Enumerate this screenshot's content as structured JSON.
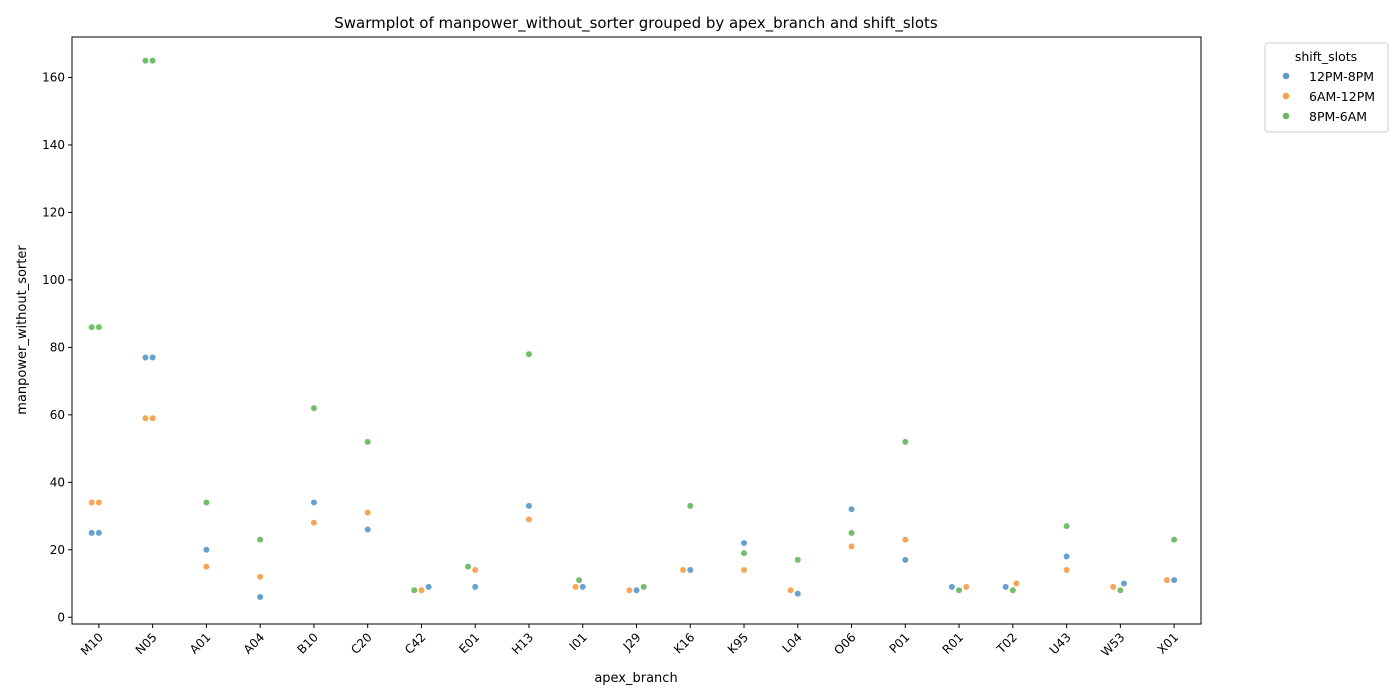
{
  "chart_data": {
    "type": "scatter",
    "subtype": "swarm",
    "title": "Swarmplot of manpower_without_sorter grouped by apex_branch and shift_slots",
    "xlabel": "apex_branch",
    "ylabel": "manpower_without_sorter",
    "ylim": [
      -2,
      172
    ],
    "yticks": [
      0,
      20,
      40,
      60,
      80,
      100,
      120,
      140,
      160
    ],
    "grid": false,
    "legend": {
      "title": "shift_slots",
      "placement": "outside-top-right"
    },
    "categories": [
      "M10",
      "N05",
      "A01",
      "A04",
      "B10",
      "C20",
      "C42",
      "E01",
      "H13",
      "I01",
      "J29",
      "K16",
      "K95",
      "L04",
      "O06",
      "P01",
      "R01",
      "T02",
      "U43",
      "W53",
      "X01"
    ],
    "series": [
      {
        "name": "12PM-8PM",
        "color": "#5f9ccb",
        "points": [
          {
            "x": "M10",
            "y": 25
          },
          {
            "x": "M10",
            "y": 25
          },
          {
            "x": "N05",
            "y": 77
          },
          {
            "x": "N05",
            "y": 77
          },
          {
            "x": "A01",
            "y": 20
          },
          {
            "x": "A04",
            "y": 6
          },
          {
            "x": "B10",
            "y": 34
          },
          {
            "x": "C20",
            "y": 26
          },
          {
            "x": "C42",
            "y": 9
          },
          {
            "x": "E01",
            "y": 9
          },
          {
            "x": "H13",
            "y": 33
          },
          {
            "x": "I01",
            "y": 9
          },
          {
            "x": "J29",
            "y": 8
          },
          {
            "x": "K16",
            "y": 14
          },
          {
            "x": "K95",
            "y": 22
          },
          {
            "x": "L04",
            "y": 7
          },
          {
            "x": "O06",
            "y": 32
          },
          {
            "x": "P01",
            "y": 17
          },
          {
            "x": "R01",
            "y": 9
          },
          {
            "x": "T02",
            "y": 9
          },
          {
            "x": "U43",
            "y": 18
          },
          {
            "x": "W53",
            "y": 10
          },
          {
            "x": "X01",
            "y": 11
          }
        ]
      },
      {
        "name": "6AM-12PM",
        "color": "#f7a14f",
        "points": [
          {
            "x": "M10",
            "y": 34
          },
          {
            "x": "M10",
            "y": 34
          },
          {
            "x": "N05",
            "y": 59
          },
          {
            "x": "N05",
            "y": 59
          },
          {
            "x": "A01",
            "y": 15
          },
          {
            "x": "A04",
            "y": 12
          },
          {
            "x": "B10",
            "y": 28
          },
          {
            "x": "C20",
            "y": 31
          },
          {
            "x": "C42",
            "y": 8
          },
          {
            "x": "E01",
            "y": 14
          },
          {
            "x": "H13",
            "y": 29
          },
          {
            "x": "I01",
            "y": 9
          },
          {
            "x": "J29",
            "y": 8
          },
          {
            "x": "K16",
            "y": 14
          },
          {
            "x": "K95",
            "y": 14
          },
          {
            "x": "L04",
            "y": 8
          },
          {
            "x": "O06",
            "y": 21
          },
          {
            "x": "P01",
            "y": 23
          },
          {
            "x": "R01",
            "y": 9
          },
          {
            "x": "T02",
            "y": 10
          },
          {
            "x": "U43",
            "y": 14
          },
          {
            "x": "W53",
            "y": 9
          },
          {
            "x": "X01",
            "y": 11
          }
        ]
      },
      {
        "name": "8PM-6AM",
        "color": "#6bba62",
        "points": [
          {
            "x": "M10",
            "y": 86
          },
          {
            "x": "M10",
            "y": 86
          },
          {
            "x": "N05",
            "y": 165
          },
          {
            "x": "N05",
            "y": 165
          },
          {
            "x": "A01",
            "y": 34
          },
          {
            "x": "A04",
            "y": 23
          },
          {
            "x": "B10",
            "y": 62
          },
          {
            "x": "C20",
            "y": 52
          },
          {
            "x": "C42",
            "y": 8
          },
          {
            "x": "E01",
            "y": 15
          },
          {
            "x": "H13",
            "y": 78
          },
          {
            "x": "I01",
            "y": 11
          },
          {
            "x": "J29",
            "y": 9
          },
          {
            "x": "K16",
            "y": 33
          },
          {
            "x": "K95",
            "y": 19
          },
          {
            "x": "L04",
            "y": 17
          },
          {
            "x": "O06",
            "y": 25
          },
          {
            "x": "P01",
            "y": 52
          },
          {
            "x": "R01",
            "y": 8
          },
          {
            "x": "T02",
            "y": 8
          },
          {
            "x": "U43",
            "y": 27
          },
          {
            "x": "W53",
            "y": 8
          },
          {
            "x": "X01",
            "y": 23
          }
        ]
      }
    ]
  }
}
